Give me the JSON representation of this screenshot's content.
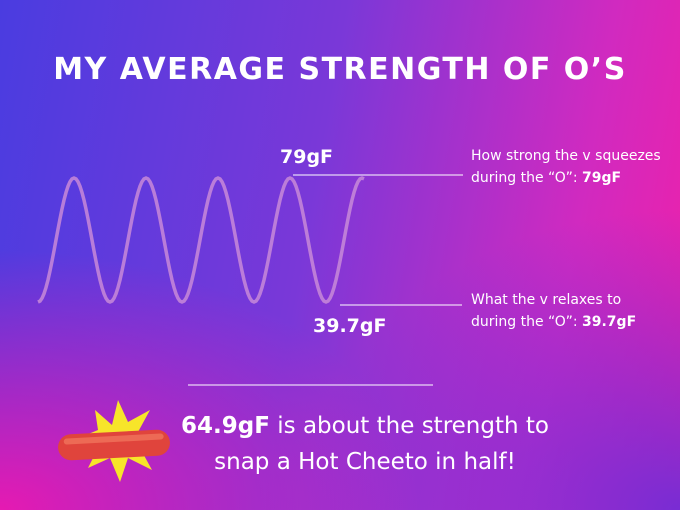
{
  "title": "MY AVERAGE STRENGTH OF O’S",
  "peak_label": "79gF",
  "trough_label": "39.7gF",
  "annotations": [
    {
      "text": "How strong the v squeezes during the “O”: ",
      "value": "79gF"
    },
    {
      "text": "What the v relaxes to during the “O”: ",
      "value": "39.7gF"
    }
  ],
  "footer": {
    "value": "64.9gF",
    "text": " is about the strength to snap a Hot Cheeto in half!"
  }
}
